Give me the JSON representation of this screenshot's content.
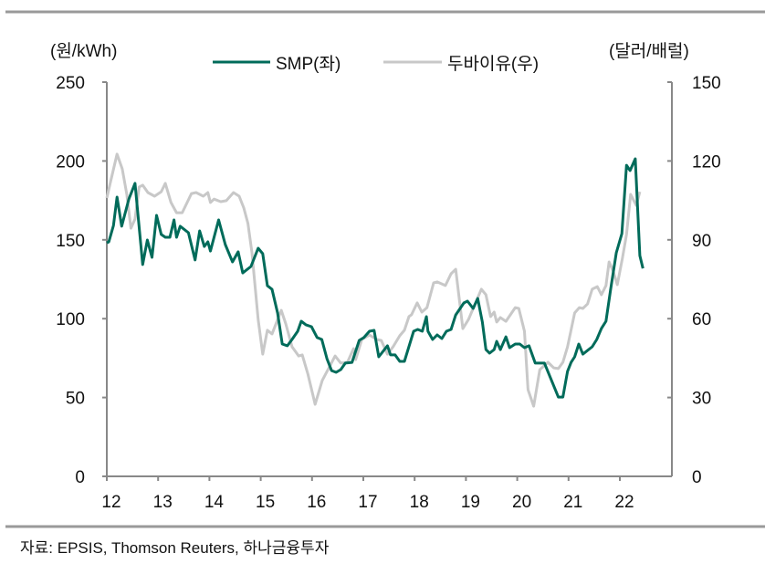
{
  "chart_data": {
    "type": "line",
    "left_axis": {
      "unit_label": "(원/kWh)",
      "ylim": [
        0,
        250
      ],
      "ticks": [
        "0",
        "50",
        "100",
        "150",
        "200",
        "250"
      ]
    },
    "right_axis": {
      "unit_label": "(달러/배럴)",
      "ylim": [
        0,
        150
      ],
      "ticks": [
        "0",
        "30",
        "60",
        "90",
        "120",
        "150"
      ]
    },
    "x_axis": {
      "xlim": [
        12,
        23
      ],
      "ticks": [
        "12",
        "13",
        "14",
        "15",
        "16",
        "17",
        "18",
        "19",
        "20",
        "21",
        "22"
      ]
    },
    "grid": false,
    "legend_position": "top",
    "series": [
      {
        "name": "SMP(좌)",
        "axis": "left",
        "color": "#006b5a",
        "points": [
          [
            12.0,
            148.1
          ],
          [
            12.04,
            148.7
          ],
          [
            12.13,
            159.1
          ],
          [
            12.2,
            177.1
          ],
          [
            12.29,
            158.6
          ],
          [
            12.43,
            175.9
          ],
          [
            12.55,
            185.8
          ],
          [
            12.7,
            134.3
          ],
          [
            12.79,
            149.9
          ],
          [
            12.88,
            138.9
          ],
          [
            12.97,
            165.5
          ],
          [
            13.06,
            153.4
          ],
          [
            13.14,
            151.6
          ],
          [
            13.23,
            151.6
          ],
          [
            13.31,
            162.6
          ],
          [
            13.36,
            151.6
          ],
          [
            13.43,
            158.6
          ],
          [
            13.59,
            154.5
          ],
          [
            13.72,
            137.2
          ],
          [
            13.81,
            155.7
          ],
          [
            13.9,
            145.8
          ],
          [
            13.97,
            148.7
          ],
          [
            14.02,
            142.9
          ],
          [
            14.18,
            162.6
          ],
          [
            14.31,
            147.0
          ],
          [
            14.45,
            136.0
          ],
          [
            14.56,
            142.4
          ],
          [
            14.65,
            129.0
          ],
          [
            14.81,
            133.1
          ],
          [
            14.95,
            144.7
          ],
          [
            15.04,
            141.2
          ],
          [
            15.13,
            120.9
          ],
          [
            15.22,
            118.6
          ],
          [
            15.33,
            103.6
          ],
          [
            15.42,
            83.9
          ],
          [
            15.52,
            82.8
          ],
          [
            15.61,
            86.8
          ],
          [
            15.72,
            92.0
          ],
          [
            15.79,
            98.4
          ],
          [
            15.88,
            96.1
          ],
          [
            15.99,
            94.9
          ],
          [
            16.1,
            88.0
          ],
          [
            16.19,
            86.8
          ],
          [
            16.29,
            74.7
          ],
          [
            16.38,
            67.1
          ],
          [
            16.47,
            66.0
          ],
          [
            16.56,
            67.7
          ],
          [
            16.65,
            71.8
          ],
          [
            16.78,
            72.3
          ],
          [
            16.92,
            86.2
          ],
          [
            17.01,
            88.0
          ],
          [
            17.12,
            92.0
          ],
          [
            17.21,
            92.6
          ],
          [
            17.3,
            75.8
          ],
          [
            17.47,
            82.8
          ],
          [
            17.53,
            77.0
          ],
          [
            17.62,
            77.0
          ],
          [
            17.71,
            72.9
          ],
          [
            17.8,
            72.9
          ],
          [
            17.98,
            92.0
          ],
          [
            18.06,
            93.2
          ],
          [
            18.15,
            92.0
          ],
          [
            18.23,
            101.3
          ],
          [
            18.26,
            92.0
          ],
          [
            18.35,
            86.8
          ],
          [
            18.44,
            89.7
          ],
          [
            18.53,
            87.4
          ],
          [
            18.62,
            92.0
          ],
          [
            18.71,
            93.2
          ],
          [
            18.8,
            102.4
          ],
          [
            18.96,
            110.0
          ],
          [
            19.03,
            111.1
          ],
          [
            19.14,
            106.5
          ],
          [
            19.23,
            112.8
          ],
          [
            19.32,
            97.8
          ],
          [
            19.39,
            80.4
          ],
          [
            19.46,
            78.1
          ],
          [
            19.55,
            80.4
          ],
          [
            19.6,
            85.6
          ],
          [
            19.67,
            80.4
          ],
          [
            19.78,
            88.5
          ],
          [
            19.85,
            81.6
          ],
          [
            19.96,
            83.9
          ],
          [
            20.05,
            83.9
          ],
          [
            20.14,
            81.6
          ],
          [
            20.23,
            82.8
          ],
          [
            20.35,
            71.8
          ],
          [
            20.53,
            71.8
          ],
          [
            20.8,
            50.3
          ],
          [
            20.89,
            50.3
          ],
          [
            20.98,
            66.6
          ],
          [
            21.05,
            72.3
          ],
          [
            21.12,
            75.8
          ],
          [
            21.2,
            83.9
          ],
          [
            21.28,
            77.5
          ],
          [
            21.46,
            82.2
          ],
          [
            21.55,
            86.8
          ],
          [
            21.64,
            93.8
          ],
          [
            21.73,
            98.4
          ],
          [
            21.82,
            118.6
          ],
          [
            21.93,
            141.8
          ],
          [
            22.04,
            153.9
          ],
          [
            22.13,
            197.3
          ],
          [
            22.2,
            193.9
          ],
          [
            22.3,
            201.4
          ],
          [
            22.39,
            140.0
          ],
          [
            22.45,
            131.9
          ]
        ]
      },
      {
        "name": "두바이유(우)",
        "axis": "right",
        "color": "#c8c8c8",
        "points": [
          [
            12.0,
            105.9
          ],
          [
            12.07,
            111.8
          ],
          [
            12.2,
            122.6
          ],
          [
            12.3,
            117.0
          ],
          [
            12.39,
            107.3
          ],
          [
            12.47,
            94.4
          ],
          [
            12.55,
            97.9
          ],
          [
            12.63,
            110.1
          ],
          [
            12.7,
            110.8
          ],
          [
            12.8,
            108.0
          ],
          [
            12.93,
            106.6
          ],
          [
            13.06,
            108.3
          ],
          [
            13.14,
            111.5
          ],
          [
            13.25,
            104.2
          ],
          [
            13.36,
            100.3
          ],
          [
            13.47,
            100.3
          ],
          [
            13.65,
            107.6
          ],
          [
            13.74,
            108.0
          ],
          [
            13.88,
            106.6
          ],
          [
            13.97,
            108.0
          ],
          [
            14.02,
            104.2
          ],
          [
            14.09,
            105.5
          ],
          [
            14.22,
            104.5
          ],
          [
            14.33,
            104.9
          ],
          [
            14.47,
            108.0
          ],
          [
            14.58,
            106.6
          ],
          [
            14.67,
            102.1
          ],
          [
            14.75,
            96.2
          ],
          [
            14.83,
            85.1
          ],
          [
            14.95,
            59.7
          ],
          [
            15.04,
            46.5
          ],
          [
            15.13,
            55.6
          ],
          [
            15.22,
            54.2
          ],
          [
            15.4,
            63.2
          ],
          [
            15.49,
            58.0
          ],
          [
            15.61,
            49.3
          ],
          [
            15.74,
            45.8
          ],
          [
            15.81,
            46.2
          ],
          [
            15.92,
            38.9
          ],
          [
            16.06,
            27.4
          ],
          [
            16.2,
            36.5
          ],
          [
            16.33,
            41.3
          ],
          [
            16.45,
            45.8
          ],
          [
            16.56,
            43.1
          ],
          [
            16.69,
            43.4
          ],
          [
            16.81,
            48.6
          ],
          [
            16.85,
            44.4
          ],
          [
            16.97,
            52.1
          ],
          [
            17.12,
            53.8
          ],
          [
            17.26,
            52.1
          ],
          [
            17.35,
            51.7
          ],
          [
            17.47,
            46.5
          ],
          [
            17.58,
            49.3
          ],
          [
            17.71,
            53.5
          ],
          [
            17.8,
            55.6
          ],
          [
            17.89,
            60.8
          ],
          [
            17.94,
            61.5
          ],
          [
            18.05,
            66.0
          ],
          [
            18.14,
            62.5
          ],
          [
            18.24,
            64.2
          ],
          [
            18.37,
            73.6
          ],
          [
            18.44,
            74.0
          ],
          [
            18.6,
            72.6
          ],
          [
            18.71,
            77.1
          ],
          [
            18.8,
            78.8
          ],
          [
            18.94,
            56.2
          ],
          [
            19.05,
            59.7
          ],
          [
            19.3,
            71.2
          ],
          [
            19.39,
            69.1
          ],
          [
            19.48,
            60.8
          ],
          [
            19.55,
            62.5
          ],
          [
            19.6,
            58.7
          ],
          [
            19.67,
            60.4
          ],
          [
            19.78,
            59.0
          ],
          [
            19.96,
            64.2
          ],
          [
            20.03,
            63.9
          ],
          [
            20.14,
            55.2
          ],
          [
            20.21,
            33.0
          ],
          [
            20.32,
            26.7
          ],
          [
            20.44,
            40.6
          ],
          [
            20.6,
            43.4
          ],
          [
            20.71,
            41.3
          ],
          [
            20.8,
            41.0
          ],
          [
            20.89,
            43.4
          ],
          [
            20.98,
            49.3
          ],
          [
            21.12,
            62.2
          ],
          [
            21.21,
            64.2
          ],
          [
            21.28,
            63.9
          ],
          [
            21.37,
            65.6
          ],
          [
            21.46,
            71.2
          ],
          [
            21.56,
            72.2
          ],
          [
            21.64,
            69.1
          ],
          [
            21.73,
            72.6
          ],
          [
            21.79,
            81.6
          ],
          [
            21.87,
            78.1
          ],
          [
            21.95,
            72.9
          ],
          [
            22.05,
            83.0
          ],
          [
            22.13,
            92.0
          ],
          [
            22.21,
            107.3
          ],
          [
            22.32,
            103.1
          ],
          [
            22.39,
            108.3
          ]
        ]
      }
    ]
  },
  "source": "자료: EPSIS, Thomson Reuters, 하나금융투자"
}
